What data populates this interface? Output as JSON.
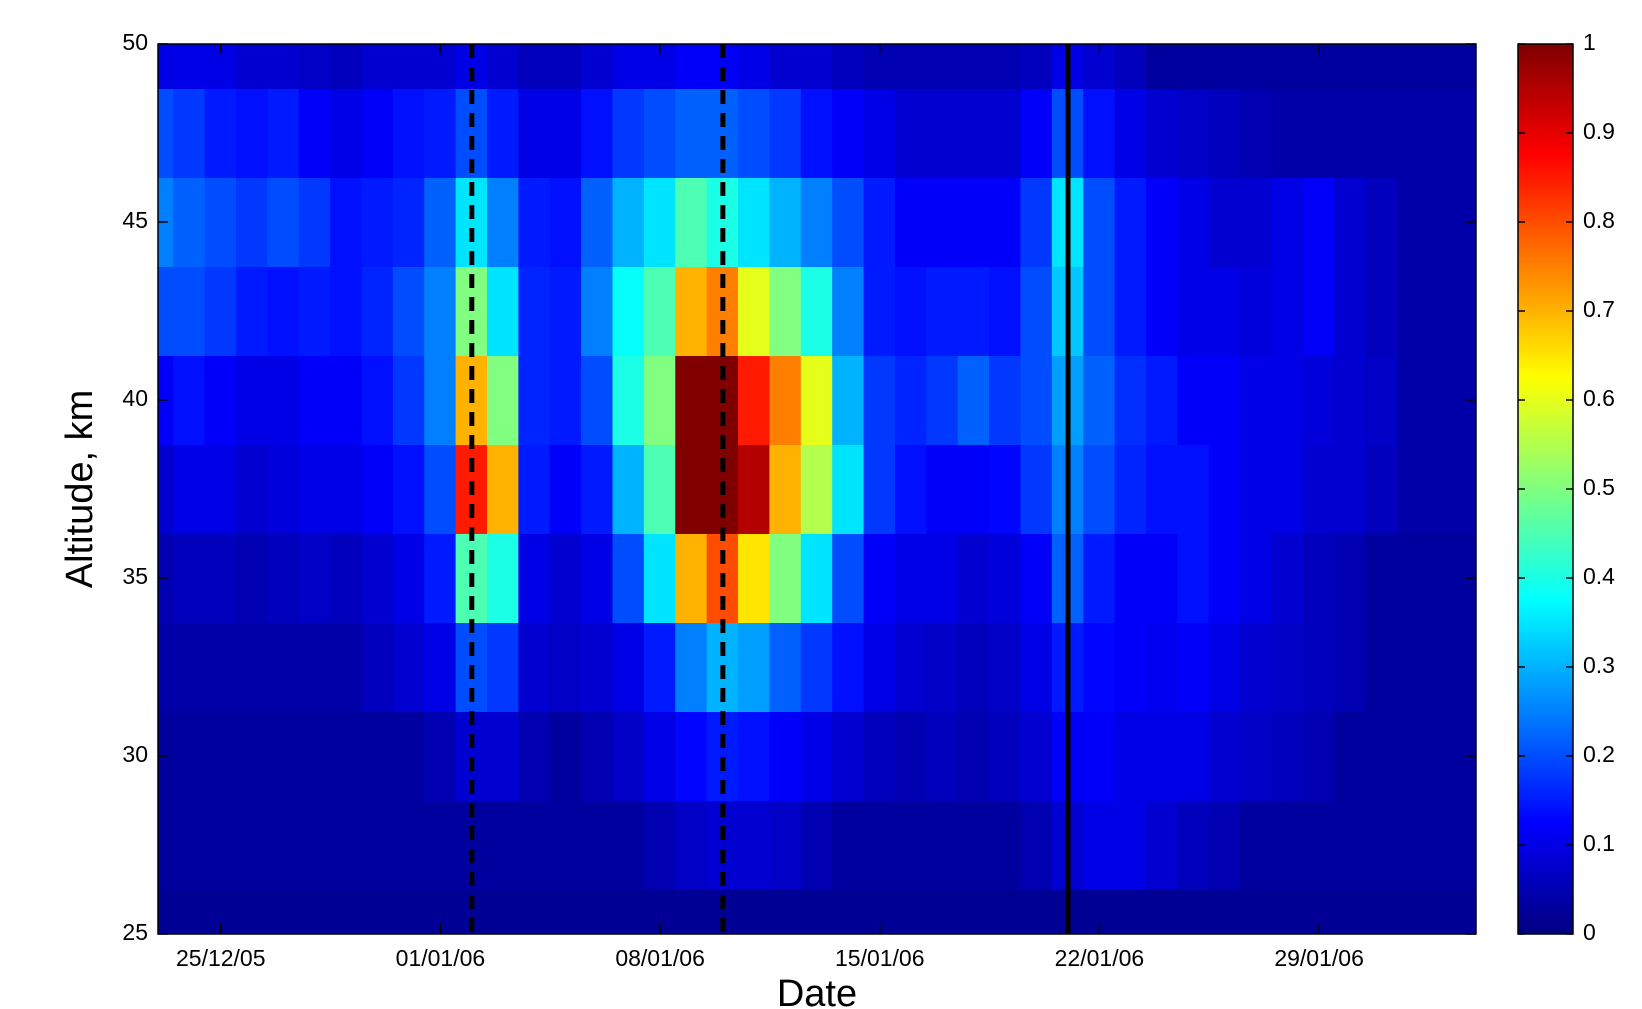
{
  "chart_data": {
    "type": "contour",
    "xlabel": "Date",
    "ylabel": "Altitude, km",
    "x": [
      "2005-12-23",
      "2005-12-24",
      "2005-12-25",
      "2005-12-26",
      "2005-12-27",
      "2005-12-28",
      "2005-12-29",
      "2005-12-30",
      "2005-12-31",
      "2006-01-01",
      "2006-01-02",
      "2006-01-03",
      "2006-01-04",
      "2006-01-05",
      "2006-01-06",
      "2006-01-07",
      "2006-01-08",
      "2006-01-09",
      "2006-01-10",
      "2006-01-11",
      "2006-01-12",
      "2006-01-13",
      "2006-01-14",
      "2006-01-15",
      "2006-01-16",
      "2006-01-17",
      "2006-01-18",
      "2006-01-19",
      "2006-01-20",
      "2006-01-21",
      "2006-01-22",
      "2006-01-23",
      "2006-01-24",
      "2006-01-25",
      "2006-01-26",
      "2006-01-27",
      "2006-01-28",
      "2006-01-29",
      "2006-01-30",
      "2006-01-31",
      "2006-02-01",
      "2006-02-02",
      "2006-02-03"
    ],
    "y": [
      25,
      27.5,
      30,
      32.5,
      35,
      37.5,
      40,
      42.5,
      45,
      47.5,
      50
    ],
    "z": [
      [
        0.02,
        0.02,
        0.02,
        0.02,
        0.02,
        0.02,
        0.02,
        0.02,
        0.02,
        0.02,
        0.02,
        0.02,
        0.02,
        0.02,
        0.02,
        0.02,
        0.02,
        0.02,
        0.02,
        0.02,
        0.02,
        0.02,
        0.02,
        0.02,
        0.02,
        0.02,
        0.02,
        0.02,
        0.02,
        0.02,
        0.02,
        0.02,
        0.02,
        0.02,
        0.02,
        0.02,
        0.02,
        0.02,
        0.02,
        0.02,
        0.02,
        0.02,
        0.02
      ],
      [
        0.03,
        0.03,
        0.03,
        0.03,
        0.03,
        0.03,
        0.03,
        0.03,
        0.03,
        0.03,
        0.03,
        0.03,
        0.03,
        0.03,
        0.03,
        0.03,
        0.05,
        0.07,
        0.08,
        0.08,
        0.07,
        0.05,
        0.03,
        0.03,
        0.03,
        0.03,
        0.03,
        0.03,
        0.05,
        0.08,
        0.1,
        0.1,
        0.08,
        0.06,
        0.05,
        0.03,
        0.03,
        0.03,
        0.03,
        0.03,
        0.03,
        0.03,
        0.03
      ],
      [
        0.03,
        0.03,
        0.03,
        0.03,
        0.03,
        0.03,
        0.03,
        0.03,
        0.03,
        0.05,
        0.08,
        0.08,
        0.05,
        0.03,
        0.05,
        0.07,
        0.1,
        0.13,
        0.15,
        0.14,
        0.12,
        0.1,
        0.08,
        0.06,
        0.05,
        0.06,
        0.05,
        0.06,
        0.08,
        0.12,
        0.12,
        0.1,
        0.1,
        0.1,
        0.08,
        0.07,
        0.06,
        0.05,
        0.03,
        0.03,
        0.03,
        0.03,
        0.03
      ],
      [
        0.04,
        0.04,
        0.04,
        0.04,
        0.04,
        0.04,
        0.04,
        0.06,
        0.08,
        0.1,
        0.2,
        0.18,
        0.08,
        0.07,
        0.08,
        0.1,
        0.15,
        0.25,
        0.3,
        0.28,
        0.22,
        0.18,
        0.14,
        0.1,
        0.08,
        0.07,
        0.06,
        0.07,
        0.1,
        0.15,
        0.13,
        0.12,
        0.11,
        0.12,
        0.1,
        0.08,
        0.07,
        0.06,
        0.05,
        0.03,
        0.03,
        0.03,
        0.03
      ],
      [
        0.05,
        0.06,
        0.06,
        0.05,
        0.06,
        0.07,
        0.06,
        0.08,
        0.1,
        0.15,
        0.45,
        0.4,
        0.1,
        0.08,
        0.1,
        0.2,
        0.35,
        0.7,
        0.8,
        0.65,
        0.5,
        0.35,
        0.2,
        0.12,
        0.1,
        0.1,
        0.08,
        0.09,
        0.12,
        0.22,
        0.15,
        0.12,
        0.12,
        0.14,
        0.12,
        0.1,
        0.08,
        0.06,
        0.05,
        0.03,
        0.03,
        0.03,
        0.03
      ],
      [
        0.08,
        0.1,
        0.1,
        0.08,
        0.09,
        0.1,
        0.1,
        0.12,
        0.14,
        0.2,
        0.85,
        0.7,
        0.15,
        0.12,
        0.15,
        0.3,
        0.45,
        1,
        1,
        0.95,
        0.7,
        0.55,
        0.35,
        0.18,
        0.14,
        0.12,
        0.12,
        0.13,
        0.18,
        0.25,
        0.2,
        0.16,
        0.14,
        0.14,
        0.12,
        0.1,
        0.1,
        0.08,
        0.08,
        0.06,
        0.04,
        0.04,
        0.04
      ],
      [
        0.12,
        0.14,
        0.12,
        0.1,
        0.1,
        0.12,
        0.12,
        0.14,
        0.18,
        0.25,
        0.7,
        0.5,
        0.16,
        0.15,
        0.2,
        0.4,
        0.5,
        1,
        1,
        0.85,
        0.75,
        0.6,
        0.3,
        0.18,
        0.16,
        0.18,
        0.22,
        0.18,
        0.2,
        0.28,
        0.22,
        0.17,
        0.15,
        0.12,
        0.12,
        0.1,
        0.1,
        0.09,
        0.08,
        0.07,
        0.04,
        0.04,
        0.04
      ],
      [
        0.2,
        0.2,
        0.18,
        0.15,
        0.14,
        0.15,
        0.14,
        0.16,
        0.2,
        0.25,
        0.5,
        0.35,
        0.16,
        0.15,
        0.25,
        0.38,
        0.45,
        0.7,
        0.75,
        0.6,
        0.5,
        0.4,
        0.25,
        0.15,
        0.14,
        0.15,
        0.15,
        0.14,
        0.2,
        0.32,
        0.2,
        0.15,
        0.12,
        0.1,
        0.1,
        0.09,
        0.1,
        0.12,
        0.08,
        0.06,
        0.04,
        0.04,
        0.04
      ],
      [
        0.25,
        0.22,
        0.2,
        0.18,
        0.2,
        0.18,
        0.14,
        0.15,
        0.16,
        0.22,
        0.35,
        0.25,
        0.15,
        0.14,
        0.22,
        0.3,
        0.35,
        0.45,
        0.4,
        0.35,
        0.3,
        0.25,
        0.2,
        0.15,
        0.12,
        0.12,
        0.12,
        0.12,
        0.18,
        0.35,
        0.2,
        0.15,
        0.12,
        0.1,
        0.08,
        0.08,
        0.1,
        0.12,
        0.08,
        0.06,
        0.04,
        0.04,
        0.04
      ],
      [
        0.2,
        0.18,
        0.15,
        0.14,
        0.15,
        0.12,
        0.1,
        0.12,
        0.14,
        0.15,
        0.2,
        0.15,
        0.1,
        0.1,
        0.14,
        0.18,
        0.2,
        0.22,
        0.22,
        0.2,
        0.18,
        0.14,
        0.12,
        0.1,
        0.08,
        0.08,
        0.08,
        0.08,
        0.12,
        0.2,
        0.14,
        0.1,
        0.08,
        0.07,
        0.06,
        0.05,
        0.04,
        0.04,
        0.04,
        0.04,
        0.04,
        0.04,
        0.04
      ],
      [
        0.1,
        0.1,
        0.1,
        0.08,
        0.08,
        0.07,
        0.06,
        0.08,
        0.08,
        0.08,
        0.1,
        0.08,
        0.06,
        0.06,
        0.08,
        0.1,
        0.1,
        0.12,
        0.12,
        0.1,
        0.08,
        0.08,
        0.06,
        0.05,
        0.05,
        0.05,
        0.05,
        0.05,
        0.06,
        0.1,
        0.08,
        0.06,
        0.03,
        0.03,
        0.03,
        0.03,
        0.03,
        0.03,
        0.03,
        0.03,
        0.03,
        0.03,
        0.03
      ]
    ],
    "xlim": [
      "2005-12-23",
      "2006-02-03"
    ],
    "xticks": [
      {
        "value": "2005-12-25",
        "label": "25/12/05"
      },
      {
        "value": "2006-01-01",
        "label": "01/01/06"
      },
      {
        "value": "2006-01-08",
        "label": "08/01/06"
      },
      {
        "value": "2006-01-15",
        "label": "15/01/06"
      },
      {
        "value": "2006-01-22",
        "label": "22/01/06"
      },
      {
        "value": "2006-01-29",
        "label": "29/01/06"
      }
    ],
    "ylim": [
      25,
      50
    ],
    "yticks": [
      25,
      30,
      35,
      40,
      45,
      50
    ],
    "colormap": "jet",
    "clim": [
      0,
      1
    ],
    "cticks": [
      0,
      0.1,
      0.2,
      0.3,
      0.4,
      0.5,
      0.6,
      0.7,
      0.8,
      0.9,
      1
    ],
    "vlines": [
      {
        "x": "2006-01-02",
        "style": "dashed",
        "color": "#000000"
      },
      {
        "x": "2006-01-10",
        "style": "dashed",
        "color": "#000000"
      },
      {
        "x": "2006-01-21",
        "style": "solid",
        "color": "#000000"
      }
    ]
  }
}
